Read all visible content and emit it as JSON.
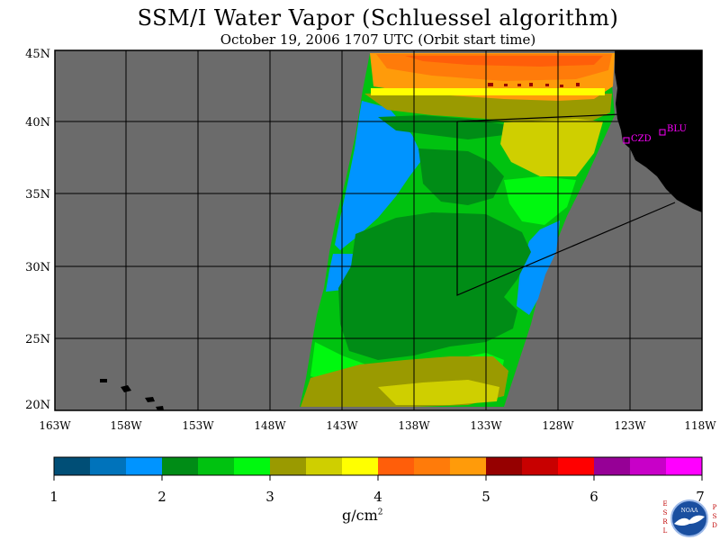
{
  "title": "SSM/I Water Vapor (Schluessel algorithm)",
  "subtitle": "October 19, 2006  1707 UTC  (Orbit start time)",
  "colors": {
    "ocean_background": "#6b6b6b",
    "land": "#000000",
    "grid": "#000000",
    "station_marker": "#ff00ff"
  },
  "map": {
    "lat_labels": [
      "45N",
      "40N",
      "35N",
      "30N",
      "25N",
      "20N"
    ],
    "lon_labels": [
      "163W",
      "158W",
      "153W",
      "148W",
      "143W",
      "138W",
      "133W",
      "128W",
      "123W",
      "118W"
    ],
    "stations": [
      {
        "label": "CZD"
      },
      {
        "label": "BLU"
      }
    ]
  },
  "colorbar": {
    "tick_labels": [
      "1",
      "2",
      "3",
      "4",
      "5",
      "6",
      "7"
    ],
    "colors": [
      "#004e76",
      "#0073bb",
      "#0094ff",
      "#008c16",
      "#00c210",
      "#00f80f",
      "#9a9a00",
      "#cfcf00",
      "#ffff00",
      "#ff5e0a",
      "#ff7b0a",
      "#ff9b0a",
      "#960000",
      "#c80000",
      "#ff0000",
      "#960096",
      "#c800c8",
      "#ff00ff"
    ],
    "units_main": "g/cm",
    "units_exp": "2"
  },
  "logo": {
    "left_letters": "ESRL",
    "right_letters": "PSD",
    "center_text": "NOAA"
  }
}
